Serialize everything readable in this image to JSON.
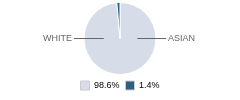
{
  "chart_data": {
    "type": "pie",
    "categories": [
      "WHITE",
      "ASIAN"
    ],
    "values": [
      98.6,
      1.4
    ],
    "value_labels": [
      "98.6%",
      "1.4%"
    ],
    "colors": [
      "#d6dde8",
      "#2e5f7e"
    ],
    "legend": "bottom"
  }
}
